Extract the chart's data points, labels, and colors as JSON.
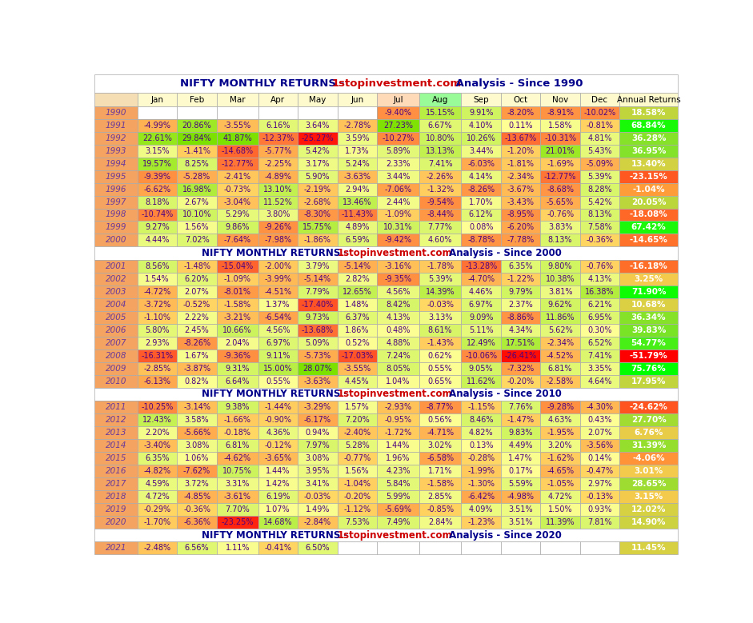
{
  "columns": [
    "",
    "Jan",
    "Feb",
    "Mar",
    "Apr",
    "May",
    "Jun",
    "Jul",
    "Aug",
    "Sep",
    "Oct",
    "Nov",
    "Dec",
    "Annual Returns"
  ],
  "data": {
    "1990": [
      null,
      null,
      null,
      null,
      null,
      null,
      -9.4,
      15.15,
      9.91,
      -8.2,
      -8.91,
      -10.02,
      18.58
    ],
    "1991": [
      -4.99,
      20.86,
      -3.55,
      6.16,
      3.64,
      -2.78,
      27.23,
      6.67,
      4.1,
      0.11,
      1.58,
      -0.81,
      68.84
    ],
    "1992": [
      22.61,
      29.84,
      41.87,
      -12.37,
      -25.27,
      3.59,
      -10.27,
      10.8,
      10.26,
      -13.67,
      -10.31,
      4.81,
      36.28
    ],
    "1993": [
      3.15,
      -1.41,
      -14.68,
      -5.77,
      5.42,
      1.73,
      5.89,
      13.13,
      3.44,
      -1.2,
      21.01,
      5.43,
      36.95
    ],
    "1994": [
      19.57,
      8.25,
      -12.77,
      -2.25,
      3.17,
      5.24,
      2.33,
      7.41,
      -6.03,
      -1.81,
      -1.69,
      -5.09,
      13.4
    ],
    "1995": [
      -9.39,
      -5.28,
      -2.41,
      -4.89,
      5.9,
      -3.63,
      3.44,
      -2.26,
      4.14,
      -2.34,
      -12.77,
      5.39,
      -23.15
    ],
    "1996": [
      -6.62,
      16.98,
      -0.73,
      13.1,
      -2.19,
      2.94,
      -7.06,
      -1.32,
      -8.26,
      -3.67,
      -8.68,
      8.28,
      -1.04
    ],
    "1997": [
      8.18,
      2.67,
      -3.04,
      11.52,
      -2.68,
      13.46,
      2.44,
      -9.54,
      1.7,
      -3.43,
      -5.65,
      5.42,
      20.05
    ],
    "1998": [
      -10.74,
      10.1,
      5.29,
      3.8,
      -8.3,
      -11.43,
      -1.09,
      -8.44,
      6.12,
      -8.95,
      -0.76,
      8.13,
      -18.08
    ],
    "1999": [
      9.27,
      1.56,
      9.86,
      -9.26,
      15.75,
      4.89,
      10.31,
      7.77,
      0.08,
      -6.2,
      3.83,
      7.58,
      67.42
    ],
    "2000": [
      4.44,
      7.02,
      -7.64,
      -7.98,
      -1.86,
      6.59,
      -9.42,
      4.6,
      -8.78,
      -7.78,
      8.13,
      -0.36,
      -14.65
    ],
    "2001": [
      8.56,
      -1.48,
      -15.04,
      -2.0,
      3.79,
      -5.14,
      -3.16,
      -1.78,
      -13.28,
      6.35,
      9.8,
      -0.76,
      -16.18
    ],
    "2002": [
      1.54,
      6.2,
      -1.09,
      -3.99,
      -5.14,
      2.82,
      -9.35,
      5.39,
      -4.7,
      -1.22,
      10.38,
      4.13,
      3.25
    ],
    "2003": [
      -4.72,
      2.07,
      -8.01,
      -4.51,
      7.79,
      12.65,
      4.56,
      14.39,
      4.46,
      9.79,
      3.81,
      16.38,
      71.9
    ],
    "2004": [
      -3.72,
      -0.52,
      -1.58,
      1.37,
      -17.4,
      1.48,
      8.42,
      -0.03,
      6.97,
      2.37,
      9.62,
      6.21,
      10.68
    ],
    "2005": [
      -1.1,
      2.22,
      -3.21,
      -6.54,
      9.73,
      6.37,
      4.13,
      3.13,
      9.09,
      -8.86,
      11.86,
      6.95,
      36.34
    ],
    "2006": [
      5.8,
      2.45,
      10.66,
      4.56,
      -13.68,
      1.86,
      0.48,
      8.61,
      5.11,
      4.34,
      5.62,
      0.3,
      39.83
    ],
    "2007": [
      2.93,
      -8.26,
      2.04,
      6.97,
      5.09,
      0.52,
      4.88,
      -1.43,
      12.49,
      17.51,
      -2.34,
      6.52,
      54.77
    ],
    "2008": [
      -16.31,
      1.67,
      -9.36,
      9.11,
      -5.73,
      -17.03,
      7.24,
      0.62,
      -10.06,
      -26.41,
      -4.52,
      7.41,
      -51.79
    ],
    "2009": [
      -2.85,
      -3.87,
      9.31,
      15.0,
      28.07,
      -3.55,
      8.05,
      0.55,
      9.05,
      -7.32,
      6.81,
      3.35,
      75.76
    ],
    "2010": [
      -6.13,
      0.82,
      6.64,
      0.55,
      -3.63,
      4.45,
      1.04,
      0.65,
      11.62,
      -0.2,
      -2.58,
      4.64,
      17.95
    ],
    "2011": [
      -10.25,
      -3.14,
      9.38,
      -1.44,
      -3.29,
      1.57,
      -2.93,
      -8.77,
      -1.15,
      7.76,
      -9.28,
      -4.3,
      -24.62
    ],
    "2012": [
      12.43,
      3.58,
      -1.66,
      -0.9,
      -6.17,
      7.2,
      -0.95,
      0.56,
      8.46,
      -1.47,
      4.63,
      0.43,
      27.7
    ],
    "2013": [
      2.2,
      -5.66,
      -0.18,
      4.36,
      0.94,
      -2.4,
      -1.72,
      -4.71,
      4.82,
      9.83,
      -1.95,
      2.07,
      6.76
    ],
    "2014": [
      -3.4,
      3.08,
      6.81,
      -0.12,
      7.97,
      5.28,
      1.44,
      3.02,
      0.13,
      4.49,
      3.2,
      -3.56,
      31.39
    ],
    "2015": [
      6.35,
      1.06,
      -4.62,
      -3.65,
      3.08,
      -0.77,
      1.96,
      -6.58,
      -0.28,
      1.47,
      -1.62,
      0.14,
      -4.06
    ],
    "2016": [
      -4.82,
      -7.62,
      10.75,
      1.44,
      3.95,
      1.56,
      4.23,
      1.71,
      -1.99,
      0.17,
      -4.65,
      -0.47,
      3.01
    ],
    "2017": [
      4.59,
      3.72,
      3.31,
      1.42,
      3.41,
      -1.04,
      5.84,
      -1.58,
      -1.3,
      5.59,
      -1.05,
      2.97,
      28.65
    ],
    "2018": [
      4.72,
      -4.85,
      -3.61,
      6.19,
      -0.03,
      -0.2,
      5.99,
      2.85,
      -6.42,
      -4.98,
      4.72,
      -0.13,
      3.15
    ],
    "2019": [
      -0.29,
      -0.36,
      7.7,
      1.07,
      1.49,
      -1.12,
      -5.69,
      -0.85,
      4.09,
      3.51,
      1.5,
      0.93,
      12.02
    ],
    "2020": [
      -1.7,
      -6.36,
      -23.25,
      14.68,
      -2.84,
      7.53,
      7.49,
      2.84,
      -1.23,
      3.51,
      11.39,
      7.81,
      14.9
    ],
    "2021": [
      -2.48,
      6.56,
      1.11,
      -0.41,
      6.5,
      null,
      null,
      null,
      null,
      null,
      null,
      null,
      11.45
    ]
  },
  "section_year_lists": [
    [
      1990,
      1991,
      1992,
      1993,
      1994,
      1995,
      1996,
      1997,
      1998,
      1999,
      2000
    ],
    [
      2001,
      2002,
      2003,
      2004,
      2005,
      2006,
      2007,
      2008,
      2009,
      2010
    ],
    [
      2011,
      2012,
      2013,
      2014,
      2015,
      2016,
      2017,
      2018,
      2019,
      2020
    ],
    [
      2021
    ]
  ],
  "section_since": [
    1990,
    2000,
    2010,
    2020
  ],
  "col_header_colors": [
    "#F5DEB3",
    "#FFFACD",
    "#FFFACD",
    "#FFFACD",
    "#FFFACD",
    "#FFFACD",
    "#FFFACD",
    "#FFDAB9",
    "#98FB98",
    "#FFFACD",
    "#FFFACD",
    "#FFFACD",
    "#FFFACD",
    "#FFFACD"
  ]
}
